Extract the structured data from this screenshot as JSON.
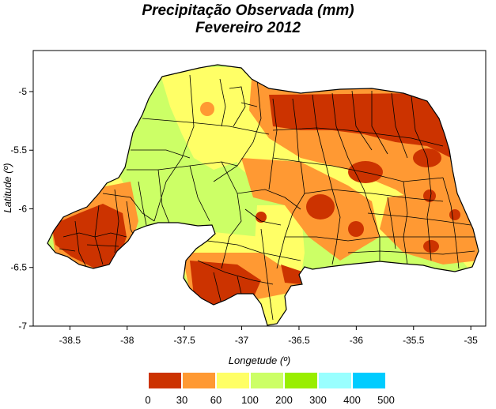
{
  "title": "Precipitação Observada (mm)",
  "subtitle": "Fevereiro  2012",
  "xlabel": "Longetude (º)",
  "ylabel": "Latitude (º)",
  "x_ticks": [
    "-38.5",
    "-38",
    "-37.5",
    "-37",
    "-36.5",
    "-36",
    "-35.5",
    "-35"
  ],
  "y_ticks": [
    "-5",
    "-5.5",
    "-6",
    "-6.5",
    "-7"
  ],
  "xlim": [
    -38.82,
    -34.87
  ],
  "ylim": [
    -7.0,
    -4.65
  ],
  "legend": {
    "labels": [
      "0",
      "30",
      "60",
      "100",
      "200",
      "300",
      "400",
      "500"
    ],
    "colors": [
      "#cc3300",
      "#ff9933",
      "#ffff66",
      "#ccff66",
      "#99ee00",
      "#99ffff",
      "#00ccff"
    ]
  },
  "colors": {
    "very_low": "#cc3300",
    "low": "#ff9933",
    "mid": "#ffff66",
    "high": "#ccff66"
  }
}
